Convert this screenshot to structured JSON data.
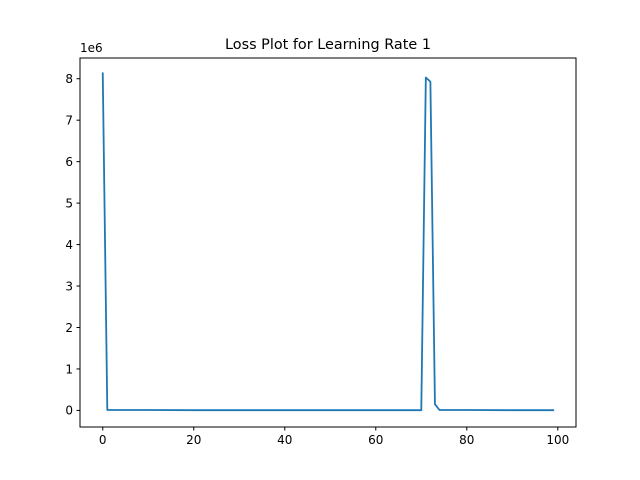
{
  "chart_data": {
    "type": "line",
    "title": "Loss Plot for Learning Rate 1",
    "xlabel": "",
    "ylabel": "",
    "y_offset_label": "1e6",
    "y_multiplier": 1000000,
    "xlim": [
      -5,
      104
    ],
    "ylim": [
      -0.4,
      8.5
    ],
    "x_ticks": [
      0,
      20,
      40,
      60,
      80,
      100
    ],
    "y_ticks": [
      0,
      1,
      2,
      3,
      4,
      5,
      6,
      7,
      8
    ],
    "grid": false,
    "legend": "none",
    "line_color": "#1f77b4",
    "series": [
      {
        "points": [
          [
            0,
            8.13
          ],
          [
            1,
            0.01
          ],
          [
            2,
            0.01
          ],
          [
            10,
            0.01
          ],
          [
            20,
            0.005
          ],
          [
            30,
            0.005
          ],
          [
            40,
            0.005
          ],
          [
            50,
            0.005
          ],
          [
            60,
            0.005
          ],
          [
            70,
            0.005
          ],
          [
            71,
            8.03
          ],
          [
            72,
            7.93
          ],
          [
            73,
            0.15
          ],
          [
            74,
            0.01
          ],
          [
            80,
            0.01
          ],
          [
            90,
            0.005
          ],
          [
            99,
            0.005
          ]
        ]
      }
    ]
  }
}
